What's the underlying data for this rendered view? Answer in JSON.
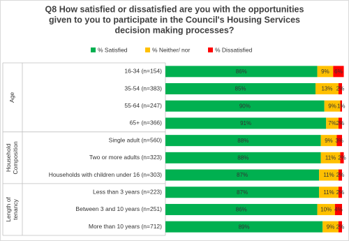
{
  "chart_data": {
    "type": "stacked-bar-horizontal",
    "title": [
      "Q8 How satisfied or dissatisfied are you with the opportunities",
      "given to you to participate in the Council's Housing Services",
      "decision making processes?"
    ],
    "groups": [
      [
        "Age"
      ],
      [
        "Household",
        "Composition"
      ],
      [
        "Length of",
        "tenancy"
      ]
    ],
    "categories": [
      "16-34 (n=154)",
      "35-54 (n=383)",
      "55-64 (n=247)",
      "65+ (n=366)",
      "Single adult (n=560)",
      "Two or more adults (n=323)",
      "Households with children under 16 (n=303)",
      "Less than 3 years (n=223)",
      "Between 3 and 10 years (n=251)",
      "More than 10 years (n=712)"
    ],
    "xlim": [
      0,
      100
    ],
    "legend": "top",
    "series": [
      {
        "name": "% Satisfied",
        "color": "#00b050",
        "values": [
          86,
          85,
          90,
          91,
          88,
          88,
          87,
          87,
          86,
          89
        ],
        "value_labels": [
          "86%",
          "85%",
          "90%",
          "91%",
          "88%",
          "88%",
          "87%",
          "87%",
          "86%",
          "89%"
        ]
      },
      {
        "name": "% Neither/ nor",
        "color": "#ffc000",
        "values": [
          9,
          13,
          9,
          7,
          9,
          11,
          11,
          11,
          10,
          9
        ],
        "value_labels": [
          "9%",
          "13%",
          "9%",
          "7%",
          "9%",
          "11%",
          "11%",
          "11%",
          "10%",
          "9%"
        ]
      },
      {
        "name": "% Dissatisfied",
        "color": "#ff0000",
        "values": [
          6,
          2,
          1,
          2,
          3,
          2,
          2,
          2,
          4,
          2
        ],
        "value_labels": [
          "6%",
          "2%",
          "1%",
          "2%",
          "3%",
          "2%",
          "2%",
          "2%",
          "4%",
          "2%"
        ]
      }
    ]
  }
}
